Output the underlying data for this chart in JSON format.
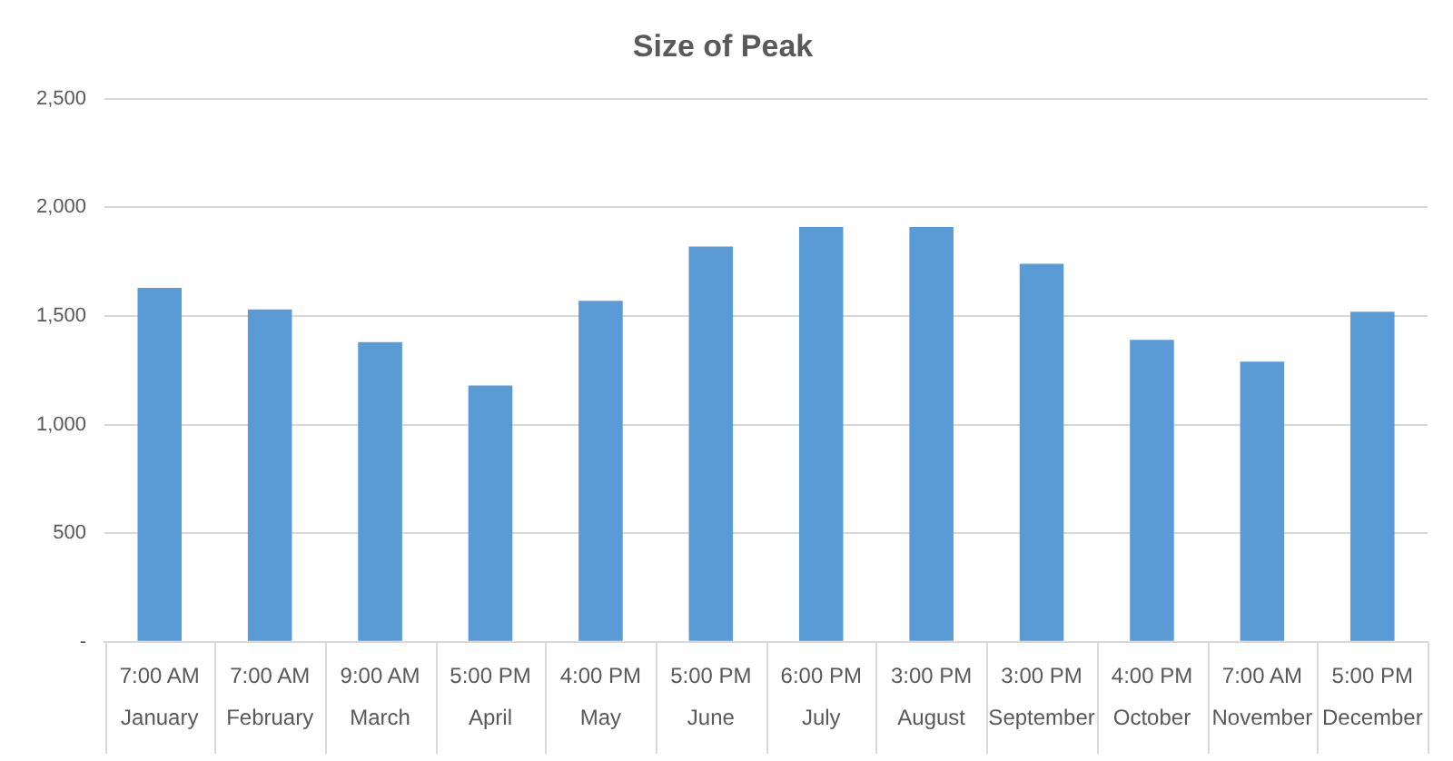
{
  "chart_data": {
    "type": "bar",
    "title": "Size of Peak",
    "categories": [
      "7:00 AM\nJanuary",
      "7:00 AM\nFebruary",
      "9:00 AM\nMarch",
      "5:00 PM\nApril",
      "4:00 PM\nMay",
      "5:00 PM\nJune",
      "6:00 PM\nJuly",
      "3:00 PM\nAugust",
      "3:00 PM\nSeptember",
      "4:00 PM\nOctober",
      "7:00 AM\nNovember",
      "5:00 PM\nDecember"
    ],
    "values": [
      1630,
      1530,
      1380,
      1180,
      1570,
      1820,
      1910,
      1910,
      1740,
      1390,
      1290,
      1520
    ],
    "color": "#5b9bd5",
    "ylim": [
      0,
      2500
    ],
    "yticks": [
      {
        "value": 0,
        "label": "-"
      },
      {
        "value": 500,
        "label": "500"
      },
      {
        "value": 1000,
        "label": "1,000"
      },
      {
        "value": 1500,
        "label": "1,500"
      },
      {
        "value": 2000,
        "label": "2,000"
      },
      {
        "value": 2500,
        "label": "2,500"
      }
    ],
    "grid": "y",
    "legend": false
  }
}
